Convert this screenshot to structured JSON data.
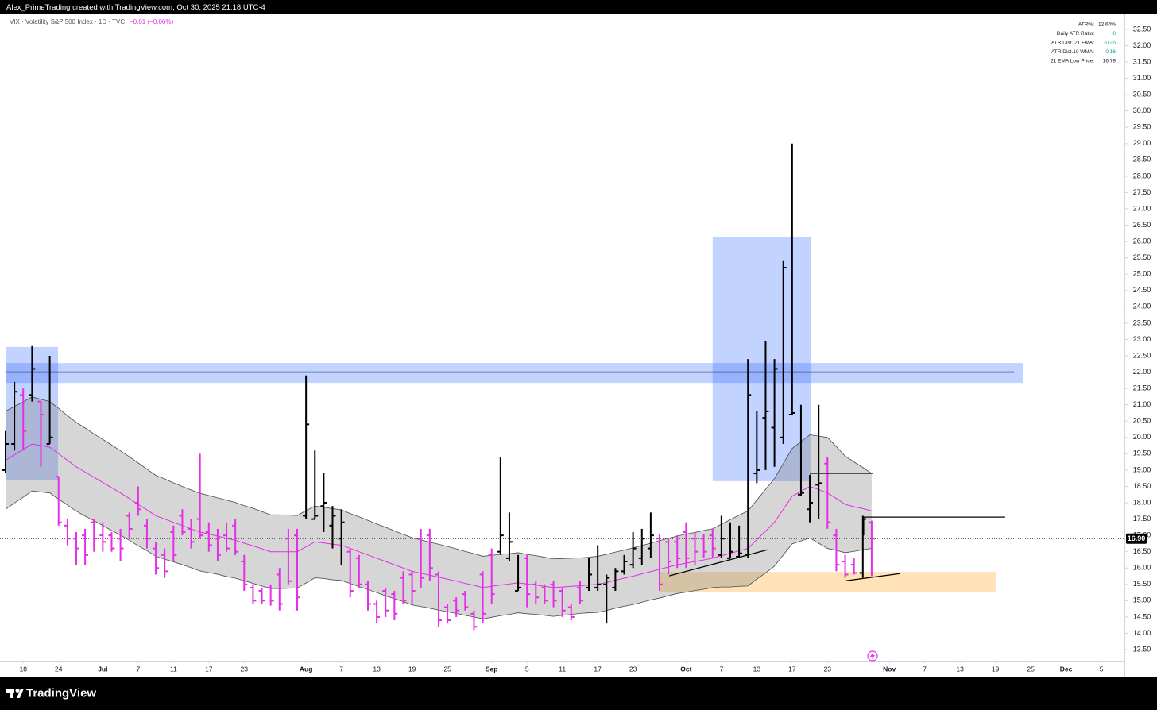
{
  "header": {
    "credit": "Alex_PrimeTrading created with TradingView.com, Oct 30, 2025 21:18 UTC-4"
  },
  "footer": {
    "brand": "TradingView"
  },
  "indicator_table": {
    "rows": [
      [
        "ATR%:",
        "12.64%"
      ],
      [
        "Daily ATR Ratio:",
        "0"
      ],
      [
        "ATR Dist. 21 EMA:",
        "-0.35"
      ],
      [
        "ATR Dist.10 WMA:",
        "0.16"
      ],
      [
        "21 EMA Low Price:",
        "16.79"
      ]
    ]
  },
  "chart_data": {
    "type": "ohlc",
    "title": "VIX · Volatility S&P 500 Index · 1D · TVC",
    "change_label": "−0.01 (−0.06%)",
    "up_color": "#000000",
    "down_color": "#e52ee5",
    "x": [
      0,
      1,
      2,
      3,
      4,
      5,
      6,
      7,
      8,
      9,
      10,
      11,
      12,
      13,
      14,
      15,
      16,
      17,
      18,
      19,
      20,
      21,
      22,
      23,
      24,
      25,
      26,
      27,
      28,
      29,
      30,
      31,
      32,
      33,
      34,
      35,
      36,
      37,
      38,
      39,
      40,
      41,
      42,
      43,
      44,
      45,
      46,
      47,
      48,
      49,
      50,
      51,
      52,
      53,
      54,
      55,
      56,
      57,
      58,
      59,
      60,
      61,
      62,
      63,
      64,
      65,
      66,
      67,
      68,
      69,
      70,
      71,
      72,
      73,
      74,
      75,
      76,
      77,
      78,
      79,
      80,
      81,
      82,
      83,
      84,
      85,
      86,
      87,
      88,
      89,
      90,
      91,
      92,
      93,
      94,
      95,
      96,
      97,
      98
    ],
    "open": [
      19.0,
      19.8,
      21.3,
      21.3,
      21.1,
      19.8,
      18.8,
      17.3,
      16.9,
      17.0,
      17.4,
      17.0,
      17.0,
      16.9,
      17.6,
      18.0,
      17.3,
      16.6,
      16.4,
      17.1,
      17.6,
      17.2,
      17.5,
      17.1,
      16.9,
      17.0,
      17.3,
      16.2,
      15.4,
      15.3,
      15.4,
      15.8,
      16.9,
      17.0,
      17.6,
      17.5,
      17.9,
      17.3,
      16.9,
      16.5,
      16.3,
      15.5,
      14.9,
      15.3,
      15.2,
      15.7,
      15.8,
      16.9,
      17.0,
      15.8,
      14.8,
      15.0,
      15.2,
      14.6,
      15.8,
      16.4,
      16.5,
      16.3,
      15.3,
      16.3,
      15.5,
      15.4,
      15.5,
      15.3,
      14.8,
      15.4,
      15.4,
      15.4,
      15.5,
      15.4,
      15.9,
      16.1,
      16.3,
      16.6,
      16.9,
      16.8,
      16.8,
      17.1,
      16.9,
      16.9,
      17.0,
      16.4,
      16.3,
      16.35,
      16.4,
      18.9,
      20.6,
      20.3,
      20.0,
      20.7,
      18.25,
      17.8,
      18.55,
      19.2,
      17.0,
      16.2,
      16.1,
      15.85,
      17.4
    ],
    "high": [
      20.2,
      21.7,
      21.5,
      22.8,
      21.1,
      22.5,
      18.8,
      17.5,
      17.1,
      17.2,
      17.5,
      17.4,
      17.1,
      17.2,
      17.7,
      18.5,
      17.5,
      16.8,
      16.6,
      17.3,
      17.8,
      17.5,
      19.5,
      17.4,
      17.2,
      17.4,
      17.5,
      16.4,
      15.5,
      15.4,
      15.5,
      16.0,
      17.2,
      17.2,
      21.9,
      19.6,
      18.9,
      17.9,
      17.8,
      16.6,
      16.4,
      15.6,
      15.0,
      15.4,
      15.3,
      15.9,
      15.9,
      17.2,
      17.2,
      15.9,
      14.9,
      15.1,
      15.3,
      14.7,
      15.9,
      16.6,
      19.4,
      17.7,
      16.4,
      16.4,
      15.6,
      15.5,
      15.6,
      15.4,
      14.9,
      15.6,
      16.3,
      16.7,
      15.8,
      16.0,
      16.4,
      17.1,
      17.2,
      17.7,
      17.05,
      16.9,
      17.0,
      17.4,
      17.1,
      17.05,
      17.2,
      17.6,
      17.4,
      17.3,
      22.4,
      20.8,
      22.95,
      22.4,
      25.4,
      29.0,
      21.0,
      18.85,
      21.0,
      19.4,
      17.2,
      16.4,
      16.3,
      17.6,
      17.45
    ],
    "low": [
      18.9,
      19.6,
      19.6,
      21.1,
      19.1,
      19.8,
      17.3,
      16.7,
      16.1,
      16.1,
      16.5,
      16.5,
      16.5,
      16.2,
      16.9,
      17.6,
      16.6,
      15.8,
      15.7,
      16.2,
      17.0,
      16.6,
      16.9,
      16.5,
      16.2,
      16.5,
      16.4,
      15.3,
      14.9,
      14.9,
      14.85,
      14.7,
      15.5,
      14.7,
      17.5,
      17.5,
      17.1,
      16.6,
      16.1,
      15.1,
      15.4,
      14.7,
      14.3,
      14.5,
      14.4,
      14.9,
      14.9,
      15.4,
      15.6,
      14.2,
      14.3,
      14.5,
      14.7,
      14.1,
      14.3,
      14.9,
      16.4,
      16.2,
      15.3,
      14.8,
      14.9,
      14.9,
      14.8,
      14.5,
      14.4,
      14.9,
      15.3,
      15.3,
      14.3,
      15.3,
      15.8,
      16.0,
      16.1,
      16.3,
      15.3,
      15.8,
      16.0,
      16.0,
      16.1,
      16.3,
      16.3,
      16.3,
      16.3,
      16.3,
      16.3,
      18.6,
      19.0,
      19.1,
      19.8,
      20.7,
      18.2,
      17.4,
      17.5,
      17.2,
      15.9,
      15.7,
      15.8,
      15.7,
      15.75
    ],
    "close": [
      19.8,
      21.4,
      20.2,
      22.1,
      20.7,
      20.0,
      17.4,
      16.9,
      16.6,
      16.4,
      16.9,
      16.8,
      16.6,
      16.6,
      17.2,
      17.8,
      16.9,
      16.0,
      15.9,
      16.4,
      17.1,
      16.8,
      17.0,
      16.7,
      16.4,
      16.6,
      16.5,
      15.5,
      15.0,
      15.0,
      15.0,
      14.9,
      15.6,
      15.1,
      20.4,
      17.6,
      18.0,
      17.6,
      17.4,
      15.3,
      15.5,
      14.9,
      14.5,
      14.7,
      14.6,
      15.0,
      15.3,
      15.7,
      16.0,
      14.4,
      14.4,
      14.7,
      14.8,
      14.2,
      14.6,
      15.2,
      17.0,
      16.8,
      15.4,
      15.2,
      15.1,
      15.0,
      15.0,
      14.7,
      14.5,
      15.0,
      15.8,
      15.5,
      15.7,
      15.9,
      16.2,
      16.6,
      16.9,
      17.0,
      15.5,
      16.2,
      16.3,
      16.3,
      16.5,
      16.5,
      16.6,
      16.9,
      16.5,
      16.45,
      21.3,
      19.0,
      20.8,
      22.1,
      25.2,
      20.75,
      18.3,
      18.0,
      18.6,
      17.4,
      16.1,
      15.8,
      15.85,
      17.5,
      16.9
    ],
    "ema": {
      "color": "#e52ee5",
      "values": [
        19.3,
        19.47,
        19.63,
        19.8,
        19.75,
        19.7,
        19.5,
        19.3,
        19.1,
        18.94,
        18.78,
        18.62,
        18.46,
        18.3,
        18.13,
        17.95,
        17.78,
        17.6,
        17.5,
        17.4,
        17.3,
        17.2,
        17.1,
        17.04,
        16.98,
        16.91,
        16.85,
        16.76,
        16.68,
        16.59,
        16.5,
        16.5,
        16.5,
        16.5,
        16.65,
        16.8,
        16.77,
        16.73,
        16.7,
        16.6,
        16.5,
        16.4,
        16.3,
        16.2,
        16.1,
        16.0,
        15.9,
        15.84,
        15.78,
        15.72,
        15.66,
        15.6,
        15.53,
        15.47,
        15.4,
        15.44,
        15.48,
        15.51,
        15.55,
        15.51,
        15.48,
        15.44,
        15.4,
        15.42,
        15.44,
        15.46,
        15.48,
        15.5,
        15.56,
        15.63,
        15.69,
        15.75,
        15.82,
        15.89,
        15.96,
        16.03,
        16.1,
        16.15,
        16.2,
        16.25,
        16.3,
        16.38,
        16.45,
        16.53,
        16.6,
        16.87,
        17.13,
        17.4,
        17.8,
        18.2,
        18.35,
        18.5,
        18.4,
        18.3,
        18.13,
        17.95,
        17.88,
        17.82,
        17.75
      ]
    },
    "band": {
      "color": "rgba(120,120,120,0.3)",
      "edge_color": "#4a4a4a",
      "values": [
        1.5,
        1.48,
        1.46,
        1.44,
        1.42,
        1.4,
        1.39,
        1.37,
        1.36,
        1.35,
        1.33,
        1.32,
        1.31,
        1.29,
        1.28,
        1.27,
        1.25,
        1.24,
        1.23,
        1.21,
        1.2,
        1.19,
        1.19,
        1.18,
        1.17,
        1.17,
        1.16,
        1.15,
        1.15,
        1.14,
        1.13,
        1.13,
        1.12,
        1.11,
        1.11,
        1.1,
        1.09,
        1.09,
        1.08,
        1.07,
        1.07,
        1.06,
        1.05,
        1.05,
        1.04,
        1.03,
        1.03,
        1.02,
        1.01,
        1.01,
        1.0,
        0.99,
        0.98,
        0.97,
        0.96,
        0.95,
        0.94,
        0.93,
        0.92,
        0.91,
        0.9,
        0.89,
        0.88,
        0.87,
        0.86,
        0.85,
        0.85,
        0.86,
        0.86,
        0.86,
        0.86,
        0.87,
        0.87,
        0.87,
        0.88,
        0.88,
        0.88,
        0.89,
        0.89,
        0.9,
        0.9,
        0.96,
        1.03,
        1.09,
        1.15,
        1.21,
        1.28,
        1.34,
        1.4,
        1.46,
        1.52,
        1.58,
        1.64,
        1.7,
        1.59,
        1.48,
        1.37,
        1.26,
        1.15
      ]
    },
    "zones": [
      {
        "x": [
          0,
          5.94
        ],
        "y": [
          18.68,
          22.77
        ],
        "color": "rgba(41,98,255,0.28)"
      },
      {
        "x": [
          0,
          115.1
        ],
        "y": [
          21.67,
          22.28
        ],
        "color": "rgba(41,98,255,0.28)"
      },
      {
        "x": [
          80.0,
          91.1
        ],
        "y": [
          18.66,
          26.15
        ],
        "color": "rgba(41,98,255,0.28)"
      },
      {
        "x": [
          74.1,
          112.1
        ],
        "y": [
          15.27,
          15.88
        ],
        "color": "rgba(255,152,0,0.28)"
      }
    ],
    "lines": [
      {
        "x": [
          0,
          114.1
        ],
        "y": [
          22.0,
          22.0
        ],
        "color": "#000000"
      },
      {
        "x": [
          75.1,
          86.2
        ],
        "y": [
          15.76,
          16.56
        ],
        "color": "#000000"
      },
      {
        "x": [
          95.1,
          101.2
        ],
        "y": [
          15.61,
          15.83
        ],
        "color": "#000000"
      },
      {
        "x": [
          91.1,
          91.1,
          98.1
        ],
        "y": [
          18.5,
          18.9,
          18.9
        ],
        "color": "#000000"
      },
      {
        "x": [
          97.1,
          97.1,
          113.1
        ],
        "y": [
          17.0,
          17.56,
          17.56
        ],
        "color": "#000000"
      }
    ],
    "last_price": {
      "value": 16.9,
      "label": "16.90"
    },
    "xlim": [
      -0.63,
      126.6
    ],
    "ylim": [
      13.16,
      32.96
    ],
    "xticks": [
      {
        "value": 2,
        "label": "18"
      },
      {
        "value": 6,
        "label": "24"
      },
      {
        "value": 11,
        "label": "Jul"
      },
      {
        "value": 15,
        "label": "7"
      },
      {
        "value": 19,
        "label": "11"
      },
      {
        "value": 23,
        "label": "17"
      },
      {
        "value": 27,
        "label": "23"
      },
      {
        "value": 34,
        "label": "Aug"
      },
      {
        "value": 38,
        "label": "7"
      },
      {
        "value": 42,
        "label": "13"
      },
      {
        "value": 46,
        "label": "19"
      },
      {
        "value": 50,
        "label": "25"
      },
      {
        "value": 55,
        "label": "Sep"
      },
      {
        "value": 59,
        "label": "5"
      },
      {
        "value": 63,
        "label": "11"
      },
      {
        "value": 67,
        "label": "17"
      },
      {
        "value": 71,
        "label": "23"
      },
      {
        "value": 77,
        "label": "Oct"
      },
      {
        "value": 81,
        "label": "7"
      },
      {
        "value": 85,
        "label": "13"
      },
      {
        "value": 89,
        "label": "17"
      },
      {
        "value": 93,
        "label": "23"
      },
      {
        "value": 100,
        "label": "Nov"
      },
      {
        "value": 104,
        "label": "7"
      },
      {
        "value": 108,
        "label": "13"
      },
      {
        "value": 112,
        "label": "19"
      },
      {
        "value": 116,
        "label": "25"
      },
      {
        "value": 120,
        "label": "Dec"
      },
      {
        "value": 124,
        "label": "5"
      }
    ],
    "yticks": [
      {
        "value": 13.5,
        "label": "13.50"
      },
      {
        "value": 14,
        "label": "14.00"
      },
      {
        "value": 14.5,
        "label": "14.50"
      },
      {
        "value": 15,
        "label": "15.00"
      },
      {
        "value": 15.5,
        "label": "15.50"
      },
      {
        "value": 16,
        "label": "16.00"
      },
      {
        "value": 16.5,
        "label": "16.50"
      },
      {
        "value": 17,
        "label": "17.00"
      },
      {
        "value": 17.5,
        "label": "17.50"
      },
      {
        "value": 18,
        "label": "18.00"
      },
      {
        "value": 18.5,
        "label": "18.50"
      },
      {
        "value": 19,
        "label": "19.00"
      },
      {
        "value": 19.5,
        "label": "19.50"
      },
      {
        "value": 20,
        "label": "20.00"
      },
      {
        "value": 20.5,
        "label": "20.50"
      },
      {
        "value": 21,
        "label": "21.00"
      },
      {
        "value": 21.5,
        "label": "21.50"
      },
      {
        "value": 22,
        "label": "22.00"
      },
      {
        "value": 22.5,
        "label": "22.50"
      },
      {
        "value": 23,
        "label": "23.00"
      },
      {
        "value": 23.5,
        "label": "23.50"
      },
      {
        "value": 24,
        "label": "24.00"
      },
      {
        "value": 24.5,
        "label": "24.50"
      },
      {
        "value": 25,
        "label": "25.00"
      },
      {
        "value": 25.5,
        "label": "25.50"
      },
      {
        "value": 26,
        "label": "26.00"
      },
      {
        "value": 26.5,
        "label": "26.50"
      },
      {
        "value": 27,
        "label": "27.00"
      },
      {
        "value": 27.5,
        "label": "27.50"
      },
      {
        "value": 28,
        "label": "28.00"
      },
      {
        "value": 28.5,
        "label": "28.50"
      },
      {
        "value": 29,
        "label": "29.00"
      },
      {
        "value": 29.5,
        "label": "29.50"
      },
      {
        "value": 30,
        "label": "30.00"
      },
      {
        "value": 30.5,
        "label": "30.50"
      },
      {
        "value": 31,
        "label": "31.00"
      },
      {
        "value": 31.5,
        "label": "31.50"
      },
      {
        "value": 32,
        "label": "32.00"
      },
      {
        "value": 32.5,
        "label": "32.50"
      }
    ]
  }
}
